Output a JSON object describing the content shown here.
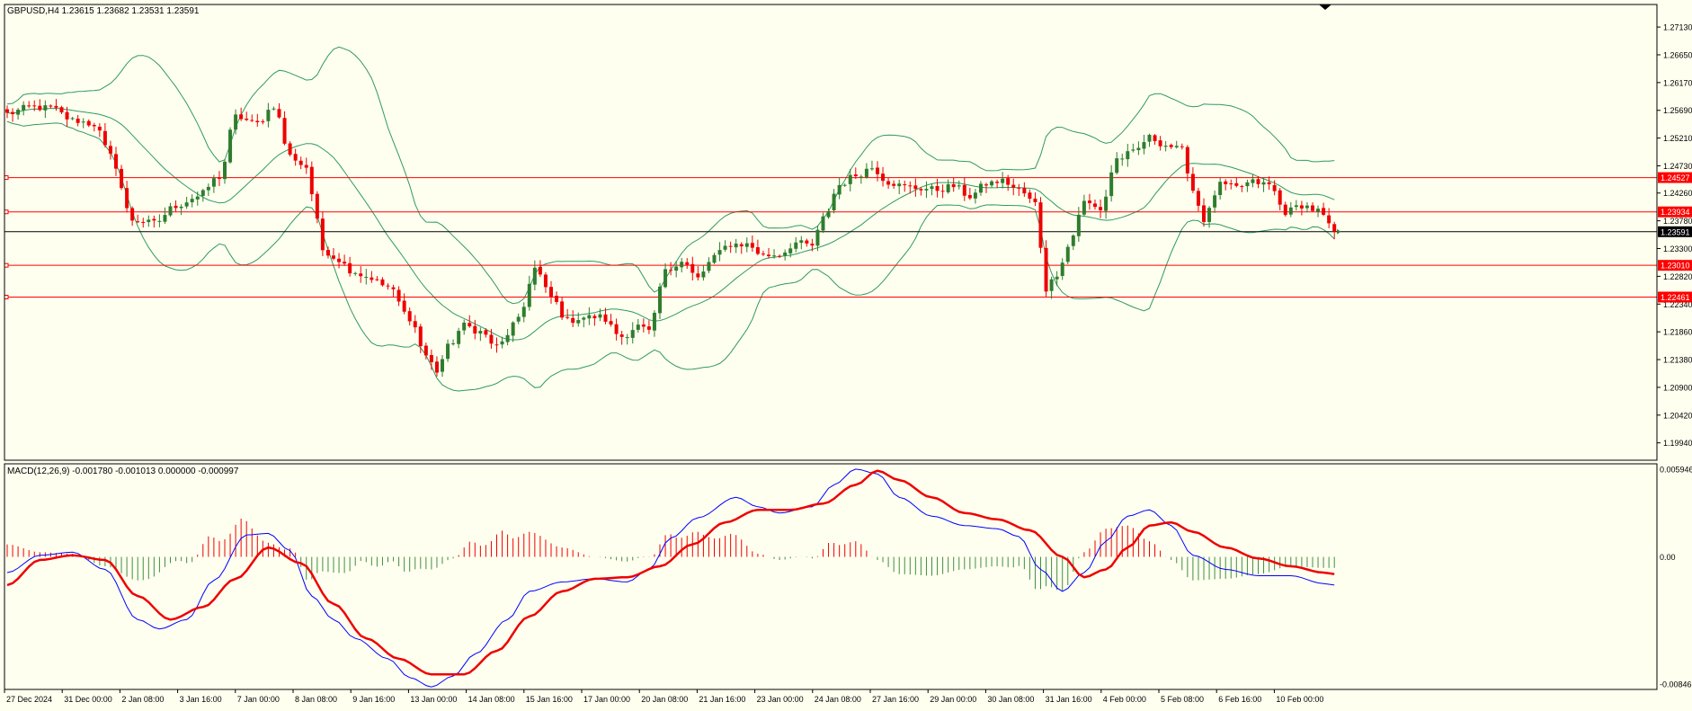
{
  "colors": {
    "background": "#fffff0",
    "frame": "#000000",
    "bull_candle": "#2e7d2e",
    "bear_candle": "#ee0000",
    "bollinger": "#2e9a62",
    "hline": "#ff0000",
    "current_price_line": "#000000",
    "macd_line": "#0000ff",
    "signal_line": "#ee0000",
    "hist_positive": "#ee0000",
    "hist_negative": "#3f8f3f"
  },
  "chart_data": [
    {
      "type": "candlestick",
      "title": "GBPUSD,H4  1.23615 1.23682 1.23531 1.23591",
      "ylim": [
        1.1964,
        1.2752
      ],
      "y_ticks": [
        "1.27130",
        "1.26650",
        "1.26170",
        "1.25690",
        "1.25210",
        "1.24730",
        "1.24260",
        "1.23780",
        "1.23300",
        "1.22820",
        "1.22340",
        "1.21860",
        "1.21380",
        "1.20900",
        "1.20420",
        "1.19940"
      ],
      "x_tick_labels": [
        "27 Dec 2024",
        "31 Dec 00:00",
        "2 Jan 08:00",
        "3 Jan 16:00",
        "7 Jan 00:00",
        "8 Jan 08:00",
        "9 Jan 16:00",
        "13 Jan 00:00",
        "14 Jan 08:00",
        "15 Jan 16:00",
        "17 Jan 00:00",
        "20 Jan 08:00",
        "21 Jan 16:00",
        "23 Jan 00:00",
        "24 Jan 08:00",
        "27 Jan 16:00",
        "29 Jan 00:00",
        "30 Jan 08:00",
        "31 Jan 16:00",
        "4 Feb 00:00",
        "5 Feb 08:00",
        "6 Feb 16:00",
        "10 Feb 00:00"
      ],
      "horizontal_lines": [
        {
          "price": 1.24527,
          "label": "1.24527"
        },
        {
          "price": 1.23934,
          "label": "1.23934"
        },
        {
          "price": 1.2301,
          "label": "1.23010"
        },
        {
          "price": 1.22461,
          "label": "1.22461"
        }
      ],
      "current_price": {
        "price": 1.23591,
        "label": "1.23591"
      },
      "close_anchors": [
        [
          0,
          1.2563
        ],
        [
          4,
          1.2574
        ],
        [
          8,
          1.2573
        ],
        [
          12,
          1.2552
        ],
        [
          16,
          1.2545
        ],
        [
          19,
          1.249
        ],
        [
          23,
          1.238
        ],
        [
          27,
          1.2374
        ],
        [
          31,
          1.2404
        ],
        [
          35,
          1.242
        ],
        [
          39,
          1.2454
        ],
        [
          42,
          1.2558
        ],
        [
          46,
          1.2546
        ],
        [
          49,
          1.2577
        ],
        [
          52,
          1.249
        ],
        [
          55,
          1.2471
        ],
        [
          56,
          1.2425
        ],
        [
          58,
          1.2328
        ],
        [
          61,
          1.2311
        ],
        [
          63,
          1.2293
        ],
        [
          66,
          1.2282
        ],
        [
          70,
          1.2264
        ],
        [
          74,
          1.221
        ],
        [
          77,
          1.2145
        ],
        [
          79,
          1.2118
        ],
        [
          81,
          1.216
        ],
        [
          84,
          1.2197
        ],
        [
          87,
          1.2186
        ],
        [
          90,
          1.216
        ],
        [
          94,
          1.2206
        ],
        [
          97,
          1.2296
        ],
        [
          100,
          1.2246
        ],
        [
          103,
          1.2205
        ],
        [
          106,
          1.2211
        ],
        [
          109,
          1.2212
        ],
        [
          113,
          1.2178
        ],
        [
          116,
          1.2196
        ],
        [
          118,
          1.2186
        ],
        [
          121,
          1.229
        ],
        [
          124,
          1.231
        ],
        [
          127,
          1.2278
        ],
        [
          130,
          1.2317
        ],
        [
          133,
          1.2338
        ],
        [
          136,
          1.2337
        ],
        [
          139,
          1.2318
        ],
        [
          142,
          1.232
        ],
        [
          145,
          1.234
        ],
        [
          148,
          1.2335
        ],
        [
          150,
          1.2382
        ],
        [
          153,
          1.244
        ],
        [
          156,
          1.2457
        ],
        [
          159,
          1.247
        ],
        [
          162,
          1.2445
        ],
        [
          165,
          1.2437
        ],
        [
          168,
          1.2434
        ],
        [
          171,
          1.2432
        ],
        [
          174,
          1.2438
        ],
        [
          177,
          1.242
        ],
        [
          180,
          1.2442
        ],
        [
          183,
          1.2447
        ],
        [
          186,
          1.2431
        ],
        [
          189,
          1.2408
        ],
        [
          191,
          1.226
        ],
        [
          193,
          1.2287
        ],
        [
          195,
          1.2333
        ],
        [
          198,
          1.241
        ],
        [
          201,
          1.2398
        ],
        [
          204,
          1.2485
        ],
        [
          207,
          1.2496
        ],
        [
          210,
          1.2522
        ],
        [
          213,
          1.2509
        ],
        [
          216,
          1.25
        ],
        [
          218,
          1.2431
        ],
        [
          220,
          1.238
        ],
        [
          223,
          1.244
        ],
        [
          226,
          1.2435
        ],
        [
          229,
          1.2445
        ],
        [
          232,
          1.244
        ],
        [
          235,
          1.2393
        ],
        [
          238,
          1.2405
        ],
        [
          241,
          1.2395
        ],
        [
          244,
          1.2359
        ]
      ],
      "series": [
        {
          "name": "Bollinger upper"
        },
        {
          "name": "Bollinger middle"
        },
        {
          "name": "Bollinger lower"
        }
      ]
    },
    {
      "type": "macd",
      "title": "MACD(12,26,9) -0.001780 -0.001013 0.000000 -0.000997",
      "ylim": [
        -0.00846,
        0.00594
      ],
      "y_ticks": [
        "0.005946",
        "0.00",
        "-0.00846"
      ],
      "macd_anchors": [
        [
          0,
          -0.001
        ],
        [
          6,
          0.0001
        ],
        [
          12,
          0.0003
        ],
        [
          18,
          -0.0008
        ],
        [
          24,
          -0.004
        ],
        [
          28,
          -0.0046
        ],
        [
          33,
          -0.004
        ],
        [
          38,
          -0.0015
        ],
        [
          44,
          0.0014
        ],
        [
          48,
          0.0015
        ],
        [
          52,
          0.0004
        ],
        [
          56,
          -0.0025
        ],
        [
          60,
          -0.004
        ],
        [
          64,
          -0.0052
        ],
        [
          70,
          -0.0065
        ],
        [
          74,
          -0.0077
        ],
        [
          78,
          -0.0083
        ],
        [
          82,
          -0.0076
        ],
        [
          86,
          -0.0062
        ],
        [
          92,
          -0.004
        ],
        [
          96,
          -0.0022
        ],
        [
          102,
          -0.0016
        ],
        [
          108,
          -0.0014
        ],
        [
          114,
          -0.0016
        ],
        [
          118,
          -0.0008
        ],
        [
          122,
          0.0012
        ],
        [
          127,
          0.0025
        ],
        [
          134,
          0.0038
        ],
        [
          138,
          0.0032
        ],
        [
          142,
          0.0028
        ],
        [
          148,
          0.0032
        ],
        [
          152,
          0.0046
        ],
        [
          156,
          0.0056
        ],
        [
          160,
          0.0053
        ],
        [
          164,
          0.0038
        ],
        [
          170,
          0.0026
        ],
        [
          176,
          0.002
        ],
        [
          182,
          0.0018
        ],
        [
          186,
          0.0013
        ],
        [
          190,
          -0.0008
        ],
        [
          194,
          -0.0022
        ],
        [
          198,
          -0.001
        ],
        [
          202,
          0.001
        ],
        [
          206,
          0.0026
        ],
        [
          210,
          0.003
        ],
        [
          214,
          0.002
        ],
        [
          218,
          0.0001
        ],
        [
          224,
          -0.0008
        ],
        [
          230,
          -0.0012
        ],
        [
          236,
          -0.0012
        ],
        [
          242,
          -0.0017
        ],
        [
          244,
          -0.0018
        ]
      ],
      "signal_anchors": [
        [
          0,
          -0.0018
        ],
        [
          6,
          -0.0002
        ],
        [
          12,
          0.0001
        ],
        [
          18,
          -0.0002
        ],
        [
          24,
          -0.0025
        ],
        [
          30,
          -0.004
        ],
        [
          36,
          -0.0032
        ],
        [
          42,
          -0.0014
        ],
        [
          48,
          0.0006
        ],
        [
          54,
          -0.0004
        ],
        [
          60,
          -0.003
        ],
        [
          66,
          -0.0052
        ],
        [
          72,
          -0.0065
        ],
        [
          78,
          -0.0075
        ],
        [
          84,
          -0.0075
        ],
        [
          90,
          -0.006
        ],
        [
          96,
          -0.0038
        ],
        [
          102,
          -0.0022
        ],
        [
          108,
          -0.0014
        ],
        [
          114,
          -0.0013
        ],
        [
          120,
          -0.0006
        ],
        [
          126,
          0.0008
        ],
        [
          132,
          0.0022
        ],
        [
          138,
          0.003
        ],
        [
          144,
          0.003
        ],
        [
          150,
          0.0034
        ],
        [
          156,
          0.0046
        ],
        [
          160,
          0.0055
        ],
        [
          164,
          0.0049
        ],
        [
          170,
          0.0038
        ],
        [
          176,
          0.0028
        ],
        [
          182,
          0.0024
        ],
        [
          188,
          0.0017
        ],
        [
          194,
          0.0
        ],
        [
          198,
          -0.0013
        ],
        [
          202,
          -0.0008
        ],
        [
          206,
          0.0006
        ],
        [
          210,
          0.002
        ],
        [
          214,
          0.0022
        ],
        [
          218,
          0.0016
        ],
        [
          224,
          0.0006
        ],
        [
          230,
          -0.0001
        ],
        [
          236,
          -0.0006
        ],
        [
          242,
          -0.001
        ],
        [
          244,
          -0.0011
        ]
      ],
      "series": [
        {
          "name": "MACD"
        },
        {
          "name": "Signal"
        },
        {
          "name": "Histogram"
        }
      ]
    }
  ]
}
